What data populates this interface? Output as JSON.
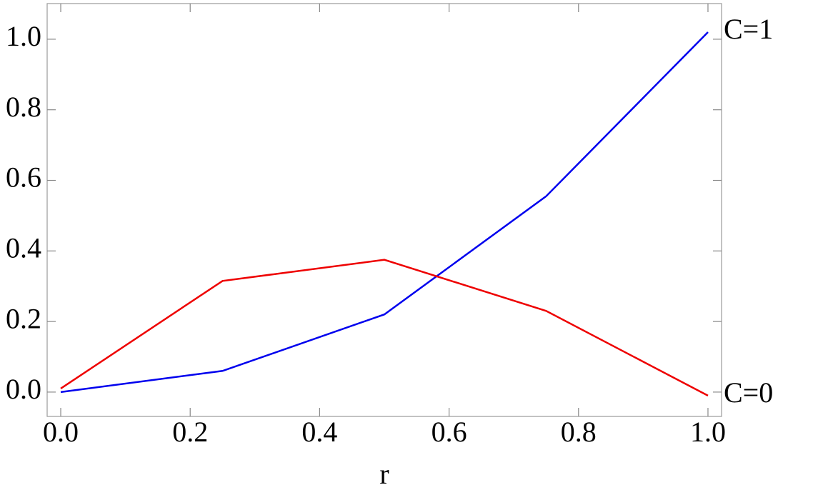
{
  "chart_data": {
    "type": "line",
    "x_label": "r",
    "x": [
      0,
      0.25,
      0.5,
      0.75,
      1
    ],
    "series": [
      {
        "name": "C=1",
        "color": "#0000ee",
        "values": [
          0,
          0.06,
          0.22,
          0.555,
          1.02
        ]
      },
      {
        "name": "C=0",
        "color": "#ee0000",
        "values": [
          0.01,
          0.315,
          0.375,
          0.23,
          -0.01
        ]
      }
    ],
    "xlim": [
      -0.021,
      1.021
    ],
    "ylim": [
      -0.069,
      1.101
    ],
    "xticks": [
      {
        "value": 0,
        "label": "0.0"
      },
      0.2,
      0.4,
      0.6,
      0.8,
      {
        "value": 1,
        "label": "1.0"
      }
    ],
    "yticks": [
      {
        "value": 0,
        "label": "0.0"
      },
      0.2,
      0.4,
      0.6,
      0.8,
      {
        "value": 1,
        "label": "1.0"
      }
    ],
    "grid": false
  }
}
